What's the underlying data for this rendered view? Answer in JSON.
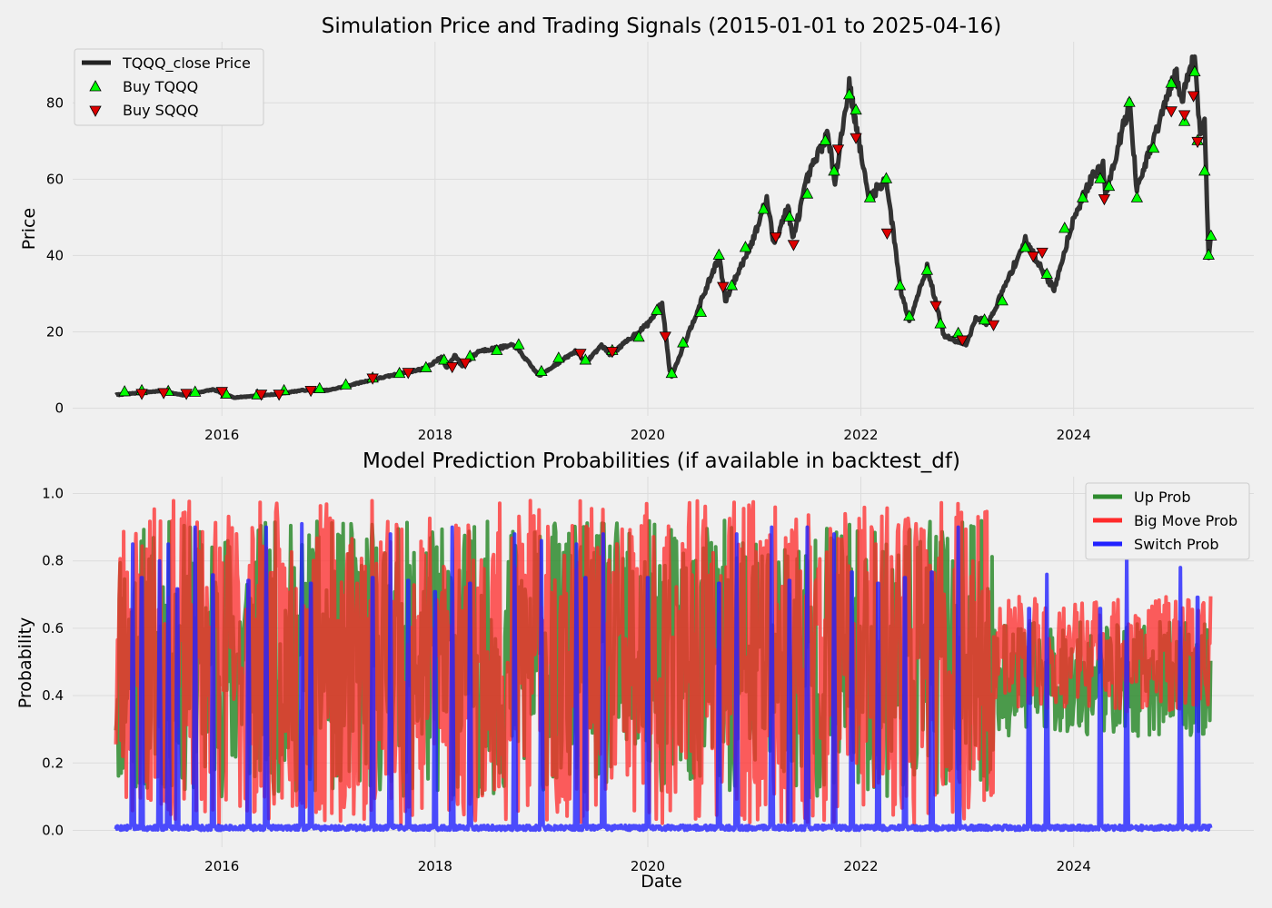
{
  "chart_data": [
    {
      "type": "line",
      "title": "Simulation Price and Trading Signals (2015-01-01 to 2025-04-16)",
      "xlabel": "",
      "ylabel": "Price",
      "xlim": [
        "2014-08-07",
        "2025-09-10"
      ],
      "ylim": [
        -2,
        96
      ],
      "x_ticks": [
        "2016-01-01",
        "2018-01-01",
        "2020-01-01",
        "2022-01-01",
        "2024-01-01"
      ],
      "x_tick_labels": [
        "2016",
        "2018",
        "2020",
        "2022",
        "2024"
      ],
      "y_ticks": [
        0,
        20,
        40,
        60,
        80
      ],
      "y_tick_labels": [
        "0",
        "20",
        "40",
        "60",
        "80"
      ],
      "grid": true,
      "legend": "top-left",
      "series": [
        {
          "name": "TQQQ_close Price",
          "kind": "line",
          "color": "#222222",
          "x": [
            "2015-01-02",
            "2015-06-01",
            "2015-08-24",
            "2015-12-01",
            "2016-02-11",
            "2016-06-27",
            "2016-10-01",
            "2017-01-01",
            "2017-06-01",
            "2017-12-01",
            "2018-01-26",
            "2018-02-08",
            "2018-03-12",
            "2018-04-02",
            "2018-06-01",
            "2018-10-01",
            "2018-12-24",
            "2019-04-30",
            "2019-06-03",
            "2019-07-26",
            "2019-08-26",
            "2019-12-31",
            "2020-02-19",
            "2020-03-16",
            "2020-03-23",
            "2020-06-01",
            "2020-09-02",
            "2020-09-23",
            "2020-12-31",
            "2021-02-12",
            "2021-03-08",
            "2021-04-26",
            "2021-05-12",
            "2021-07-01",
            "2021-09-07",
            "2021-10-04",
            "2021-11-22",
            "2022-01-27",
            "2022-03-29",
            "2022-05-20",
            "2022-06-16",
            "2022-08-16",
            "2022-10-13",
            "2022-12-28",
            "2023-02-02",
            "2023-03-13",
            "2023-07-19",
            "2023-10-26",
            "2024-01-01",
            "2024-03-01",
            "2024-04-11",
            "2024-04-19",
            "2024-07-10",
            "2024-08-05",
            "2024-12-16",
            "2025-01-07",
            "2025-01-27",
            "2025-02-19",
            "2025-03-10",
            "2025-03-25",
            "2025-04-08",
            "2025-04-16"
          ],
          "values": [
            3.5,
            4.5,
            3.4,
            4.9,
            2.8,
            3.6,
            4.7,
            4.7,
            7.5,
            10.5,
            13.5,
            10.5,
            14.0,
            11.0,
            15.0,
            16.5,
            8.5,
            15.0,
            12.0,
            16.5,
            14.0,
            22.0,
            27.5,
            10.0,
            8.5,
            22.0,
            40.0,
            28.0,
            45.0,
            55.0,
            43.0,
            53.0,
            44.0,
            60.0,
            72.0,
            60.0,
            85.0,
            55.0,
            60.0,
            30.0,
            23.0,
            37.0,
            19.0,
            16.5,
            24.0,
            22.0,
            44.0,
            31.0,
            50.0,
            60.0,
            64.0,
            56.0,
            80.0,
            57.0,
            88.0,
            80.0,
            88.0,
            92.0,
            72.0,
            75.0,
            40.0,
            45.0
          ]
        },
        {
          "name": "Buy TQQQ",
          "kind": "scatter",
          "marker": "triangle-up",
          "color": "#00ff00",
          "x": [
            "2015-02-01",
            "2015-04-01",
            "2015-07-01",
            "2015-10-01",
            "2016-01-15",
            "2016-05-01",
            "2016-08-01",
            "2016-12-01",
            "2017-03-01",
            "2017-06-01",
            "2017-09-01",
            "2017-12-01",
            "2018-02-01",
            "2018-05-01",
            "2018-08-01",
            "2018-10-15",
            "2019-01-01",
            "2019-03-01",
            "2019-06-01",
            "2019-09-01",
            "2019-12-01",
            "2020-02-01",
            "2020-03-23",
            "2020-05-01",
            "2020-07-01",
            "2020-09-01",
            "2020-10-15",
            "2020-12-01",
            "2021-02-01",
            "2021-05-01",
            "2021-07-01",
            "2021-09-01",
            "2021-10-01",
            "2021-11-22",
            "2021-12-15",
            "2022-02-01",
            "2022-03-29",
            "2022-05-15",
            "2022-06-16",
            "2022-08-16",
            "2022-10-01",
            "2022-12-01",
            "2023-03-01",
            "2023-05-01",
            "2023-07-19",
            "2023-10-01",
            "2023-12-01",
            "2024-02-01",
            "2024-04-01",
            "2024-05-01",
            "2024-07-10",
            "2024-08-05",
            "2024-10-01",
            "2024-12-01",
            "2025-01-15",
            "2025-02-19",
            "2025-03-01",
            "2025-03-25",
            "2025-04-08",
            "2025-04-16"
          ],
          "values": [
            4.2,
            4.5,
            4.3,
            4.1,
            3.6,
            3.4,
            4.5,
            5.0,
            6.0,
            7.8,
            9.0,
            10.5,
            12.5,
            13.5,
            15.0,
            16.5,
            9.5,
            13.0,
            12.5,
            15.0,
            18.5,
            25.5,
            9.0,
            17.0,
            25.0,
            40.0,
            32.0,
            42.0,
            52.0,
            50.0,
            56.0,
            70.0,
            62.0,
            82.0,
            78.0,
            55.0,
            60.0,
            32.0,
            24.0,
            36.0,
            22.0,
            19.5,
            23.0,
            28.0,
            42.0,
            35.0,
            47.0,
            55.0,
            60.0,
            58.0,
            80.0,
            55.0,
            68.0,
            85.0,
            75.0,
            88.0,
            70.0,
            62.0,
            40.0,
            45.0
          ]
        },
        {
          "name": "Buy SQQQ",
          "kind": "scatter",
          "marker": "triangle-down",
          "color": "#dd0000",
          "x": [
            "2015-04-01",
            "2015-06-15",
            "2015-09-01",
            "2016-01-01",
            "2016-05-15",
            "2016-07-15",
            "2016-11-01",
            "2017-06-01",
            "2017-10-01",
            "2018-03-01",
            "2018-04-15",
            "2019-05-15",
            "2019-09-01",
            "2020-03-01",
            "2020-09-15",
            "2021-03-15",
            "2021-05-15",
            "2021-10-15",
            "2021-12-15",
            "2022-04-01",
            "2022-09-15",
            "2022-12-15",
            "2023-04-01",
            "2023-08-15",
            "2023-09-15",
            "2024-04-15",
            "2024-12-01",
            "2025-01-15",
            "2025-02-15",
            "2025-03-01"
          ],
          "values": [
            4.0,
            4.2,
            4.0,
            4.5,
            3.8,
            3.8,
            4.8,
            8.0,
            9.5,
            11.0,
            12.0,
            14.5,
            15.0,
            19.0,
            32.0,
            45.0,
            43.0,
            68.0,
            71.0,
            46.0,
            27.0,
            18.0,
            22.0,
            40.0,
            41.0,
            55.0,
            78.0,
            77.0,
            82.0,
            70.0
          ]
        }
      ]
    },
    {
      "type": "line",
      "title": "Model Prediction Probabilities (if available in backtest_df)",
      "xlabel": "Date",
      "ylabel": "Probability",
      "xlim": [
        "2014-08-07",
        "2025-09-10"
      ],
      "ylim": [
        -0.05,
        1.05
      ],
      "x_ticks": [
        "2016-01-01",
        "2018-01-01",
        "2020-01-01",
        "2022-01-01",
        "2024-01-01"
      ],
      "x_tick_labels": [
        "2016",
        "2018",
        "2020",
        "2022",
        "2024"
      ],
      "y_ticks": [
        0,
        0.2,
        0.4,
        0.6,
        0.8,
        1.0
      ],
      "y_tick_labels": [
        "0.0",
        "0.2",
        "0.4",
        "0.6",
        "0.8",
        "1.0"
      ],
      "grid": true,
      "legend": "top-right",
      "regime_dates": {
        "start": "2015-01-02",
        "switch": "2023-04-01",
        "end": "2025-04-16"
      },
      "series": [
        {
          "name": "Up Prob",
          "color": "#2e8b2e",
          "ranges": {
            "early": [
              0.1,
              0.92
            ],
            "late": [
              0.28,
              0.62
            ]
          }
        },
        {
          "name": "Big Move Prob",
          "color": "#ff2a2a",
          "ranges": {
            "early": [
              0.02,
              0.98
            ],
            "late": [
              0.35,
              0.7
            ]
          }
        },
        {
          "name": "Switch Prob",
          "color": "#2222ff",
          "baseline": 0.0,
          "spike_dates": [
            "2015-03-01",
            "2015-04-01",
            "2015-06-01",
            "2015-07-01",
            "2015-08-01",
            "2015-10-01",
            "2015-12-01",
            "2016-04-01",
            "2016-06-01",
            "2016-10-01",
            "2016-11-01",
            "2017-06-01",
            "2017-08-01",
            "2017-10-01",
            "2018-01-01",
            "2018-03-01",
            "2018-05-01",
            "2018-10-01",
            "2019-01-01",
            "2019-05-01",
            "2019-06-01",
            "2019-08-01",
            "2020-01-01",
            "2020-09-01",
            "2020-11-01",
            "2021-03-01",
            "2021-05-01",
            "2021-07-01",
            "2021-10-01",
            "2021-12-01",
            "2022-03-01",
            "2022-06-01",
            "2022-09-01",
            "2022-12-01",
            "2023-08-01",
            "2023-10-01",
            "2024-04-01",
            "2024-07-01",
            "2025-01-01",
            "2025-03-01"
          ],
          "spike_values": [
            0.85,
            0.9,
            0.8,
            0.85,
            0.86,
            0.9,
            0.91,
            0.89,
            0.9,
            0.91,
            0.88,
            0.9,
            0.88,
            0.89,
            0.85,
            0.9,
            0.88,
            0.88,
            0.86,
            0.85,
            0.9,
            0.88,
            0.9,
            0.88,
            0.88,
            0.9,
            0.89,
            0.9,
            0.88,
            0.92,
            0.88,
            0.9,
            0.92,
            0.9,
            0.79,
            0.76,
            0.79,
            0.82,
            0.78,
            0.83
          ]
        }
      ]
    }
  ]
}
